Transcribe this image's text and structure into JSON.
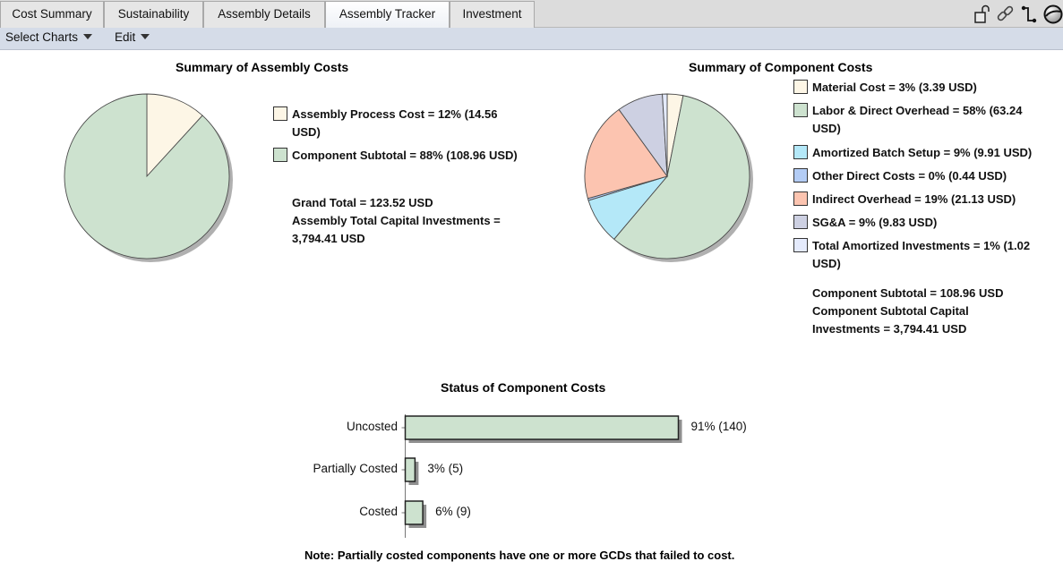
{
  "tabs": [
    {
      "label": "Cost Summary",
      "active": false
    },
    {
      "label": "Sustainability",
      "active": false
    },
    {
      "label": "Assembly Details",
      "active": false
    },
    {
      "label": "Assembly Tracker",
      "active": true
    },
    {
      "label": "Investment",
      "active": false
    }
  ],
  "tab_icons": [
    "unlock-icon",
    "link-icon",
    "connector-icon",
    "globe-icon"
  ],
  "toolbar": {
    "select_charts_label": "Select Charts",
    "edit_label": "Edit"
  },
  "chart_data": [
    {
      "type": "pie",
      "title": "Summary of Assembly Costs",
      "start_angle": "12 o'clock, clockwise",
      "slices": [
        {
          "label": "Assembly Process Cost",
          "percent": 12,
          "value": 14.56,
          "unit": "USD",
          "legend_text": "Assembly Process Cost = 12% (14.56 USD)",
          "color": "#fdf6e6"
        },
        {
          "label": "Component Subtotal",
          "percent": 88,
          "value": 108.96,
          "unit": "USD",
          "legend_text": "Component Subtotal = 88% (108.96 USD)",
          "color": "#cde2cf"
        }
      ],
      "notes": [
        "Grand Total = 123.52 USD",
        "Assembly Total Capital Investments = 3,794.41 USD"
      ]
    },
    {
      "type": "pie",
      "title": "Summary of Component Costs",
      "start_angle": "12 o'clock, clockwise",
      "slices": [
        {
          "label": "Material Cost",
          "percent": 3,
          "value": 3.39,
          "unit": "USD",
          "legend_text": "Material Cost = 3% (3.39 USD)",
          "color": "#fdf6e6"
        },
        {
          "label": "Labor & Direct Overhead",
          "percent": 58,
          "value": 63.24,
          "unit": "USD",
          "legend_text": "Labor & Direct Overhead = 58% (63.24 USD)",
          "color": "#cde2cf"
        },
        {
          "label": "Amortized Batch Setup",
          "percent": 9,
          "value": 9.91,
          "unit": "USD",
          "legend_text": "Amortized Batch Setup = 9% (9.91 USD)",
          "color": "#b4e8f8"
        },
        {
          "label": "Other Direct Costs",
          "percent": 0,
          "value": 0.44,
          "unit": "USD",
          "legend_text": "Other Direct Costs = 0% (0.44 USD)",
          "color": "#b3ccf5"
        },
        {
          "label": "Indirect Overhead",
          "percent": 19,
          "value": 21.13,
          "unit": "USD",
          "legend_text": "Indirect Overhead = 19% (21.13 USD)",
          "color": "#fcc4b0"
        },
        {
          "label": "SG&A",
          "percent": 9,
          "value": 9.83,
          "unit": "USD",
          "legend_text": "SG&A = 9% (9.83 USD)",
          "color": "#cdd0e2"
        },
        {
          "label": "Total Amortized Investments",
          "percent": 1,
          "value": 1.02,
          "unit": "USD",
          "legend_text": "Total Amortized Investments = 1% (1.02 USD)",
          "color": "#e4eafc"
        }
      ],
      "notes": [
        "Component Subtotal = 108.96 USD",
        "Component Subtotal Capital Investments = 3,794.41 USD"
      ]
    },
    {
      "type": "bar",
      "orientation": "horizontal",
      "title": "Status of Component Costs",
      "categories": [
        "Uncosted",
        "Partially Costed",
        "Costed"
      ],
      "values": [
        140,
        5,
        9
      ],
      "percents": [
        91,
        3,
        6
      ],
      "data_labels": [
        "91% (140)",
        "3% (5)",
        "6% (9)"
      ],
      "bar_color": "#cde2cf",
      "xlim": [
        0,
        140
      ],
      "grid": false,
      "note": "Note: Partially costed components have one or more GCDs that failed to cost."
    }
  ]
}
